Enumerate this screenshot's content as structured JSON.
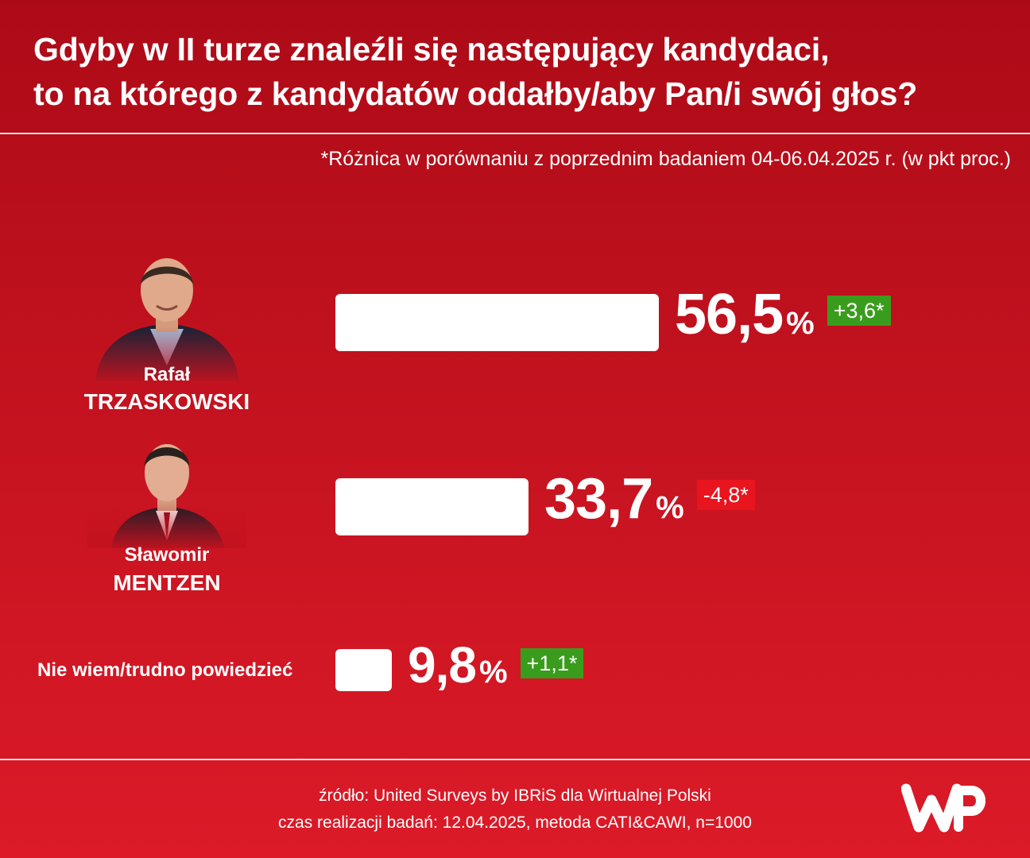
{
  "title": {
    "line1": "Gdyby w II turze znaleźli się następujący kandydaci,",
    "line2": "to na którego z kandydatów oddałby/aby Pan/i swój głos?"
  },
  "note": "*Różnica w porównaniu z poprzednim badaniem 04-06.04.2025 r. (w pkt proc.)",
  "chart_data": {
    "type": "bar",
    "orientation": "horizontal",
    "value_unit": "%",
    "categories": [
      "Rafał TRZASKOWSKI",
      "Sławomir MENTZEN",
      "Nie wiem/trudno powiedzieć"
    ],
    "values": [
      56.5,
      33.7,
      9.8
    ],
    "value_labels": [
      "56,5",
      "33,7",
      "9,8"
    ],
    "changes": [
      3.6,
      -4.8,
      1.1
    ],
    "change_labels": [
      "+3,6*",
      "-4,8*",
      "+1,1*"
    ],
    "colors": {
      "bar": "#ffffff",
      "change_positive": "#3a9c1c",
      "change_negative": "#e8141e",
      "background": "#c3121f"
    }
  },
  "candidates": [
    {
      "first_name": "Rafał",
      "last_name": "TRZASKOWSKI",
      "photo_icon": "portrait-photo"
    },
    {
      "first_name": "Sławomir",
      "last_name": "MENTZEN",
      "photo_icon": "portrait-photo"
    }
  ],
  "other_label": "Nie wiem/trudno powiedzieć",
  "percent_sign": "%",
  "source": {
    "line1": "źródło: United Surveys by IBRiS dla Wirtualnej Polski",
    "line2": "czas realizacji badań: 12.04.2025, metoda CATI&CAWI, n=1000"
  },
  "logo_icon": "wp-logo"
}
